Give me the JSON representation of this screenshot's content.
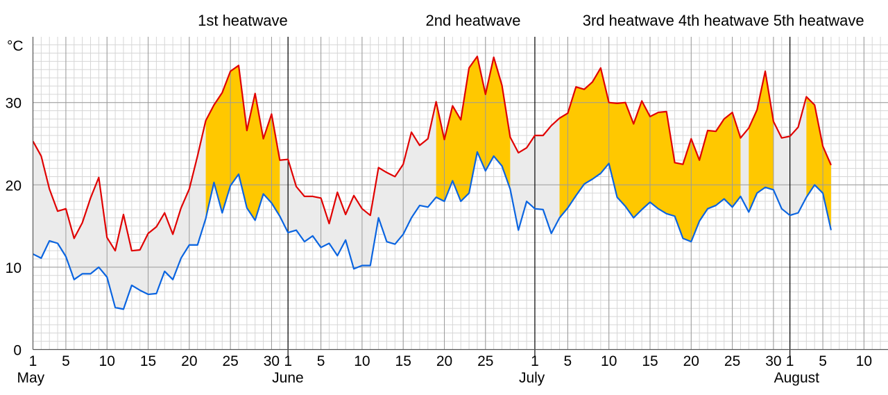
{
  "chart_data": {
    "type": "area",
    "y_unit": "°C",
    "ylim": [
      0,
      38
    ],
    "y_ticks": [
      0,
      10,
      20,
      30
    ],
    "x_start": "05-01",
    "x_end": "08-13",
    "months": [
      {
        "label": "May",
        "day_index": 0
      },
      {
        "label": "June",
        "day_index": 31
      },
      {
        "label": "July",
        "day_index": 61
      },
      {
        "label": "August",
        "day_index": 92
      }
    ],
    "x_tick_labels": [
      {
        "label": "1",
        "day_index": 0
      },
      {
        "label": "5",
        "day_index": 4
      },
      {
        "label": "10",
        "day_index": 9
      },
      {
        "label": "15",
        "day_index": 14
      },
      {
        "label": "20",
        "day_index": 19
      },
      {
        "label": "25",
        "day_index": 24
      },
      {
        "label": "30",
        "day_index": 29
      },
      {
        "label": "1",
        "day_index": 31
      },
      {
        "label": "5",
        "day_index": 35
      },
      {
        "label": "10",
        "day_index": 40
      },
      {
        "label": "15",
        "day_index": 45
      },
      {
        "label": "20",
        "day_index": 50
      },
      {
        "label": "25",
        "day_index": 55
      },
      {
        "label": "1",
        "day_index": 61
      },
      {
        "label": "5",
        "day_index": 65
      },
      {
        "label": "10",
        "day_index": 70
      },
      {
        "label": "15",
        "day_index": 75
      },
      {
        "label": "20",
        "day_index": 80
      },
      {
        "label": "25",
        "day_index": 85
      },
      {
        "label": "30",
        "day_index": 90
      },
      {
        "label": "1",
        "day_index": 92
      },
      {
        "label": "5",
        "day_index": 96
      },
      {
        "label": "10",
        "day_index": 101
      }
    ],
    "heatwaves": [
      {
        "label": "1st heatwave",
        "start": 21,
        "end": 30
      },
      {
        "label": "2nd heatwave",
        "start": 49,
        "end": 58
      },
      {
        "label": "3rd heatwave",
        "start": 64,
        "end": 86
      },
      {
        "label": "4th heatwave",
        "start": 87,
        "end": 90
      },
      {
        "label": "5th heatwave",
        "start": 94,
        "end": 97
      }
    ],
    "grid": true,
    "series": [
      {
        "key": "max",
        "color": "#e00000",
        "values": [
          25.3,
          23.5,
          19.5,
          16.8,
          17.1,
          13.5,
          15.4,
          18.4,
          20.9,
          13.6,
          12.0,
          16.4,
          12.0,
          12.1,
          14.1,
          14.9,
          16.6,
          14.0,
          17.2,
          19.5,
          23.5,
          27.8,
          29.7,
          31.2,
          33.8,
          34.5,
          26.6,
          31.1,
          25.6,
          28.6,
          23.0,
          23.1,
          19.8,
          18.6,
          18.6,
          18.4,
          15.3,
          19.1,
          16.4,
          18.7,
          17.1,
          16.3,
          22.1,
          21.5,
          21.0,
          22.5,
          26.4,
          24.8,
          25.6,
          30.1,
          25.5,
          29.6,
          27.9,
          34.2,
          35.6,
          31.0,
          35.5,
          32.1,
          25.8,
          23.9,
          24.5,
          26.0,
          26.0,
          27.2,
          28.1,
          28.7,
          31.9,
          31.6,
          32.5,
          34.2,
          30.0,
          29.9,
          30.0,
          27.4,
          30.2,
          28.3,
          28.8,
          28.9,
          22.7,
          22.5,
          25.6,
          23.0,
          26.6,
          26.5,
          28.0,
          28.8,
          25.7,
          26.9,
          29.1,
          33.8,
          27.7,
          25.7,
          25.9,
          27.0,
          30.7,
          29.7,
          24.7,
          22.4
        ]
      },
      {
        "key": "min",
        "color": "#0a64e0",
        "values": [
          11.6,
          11.1,
          13.2,
          12.9,
          11.3,
          8.5,
          9.2,
          9.2,
          10.0,
          8.8,
          5.1,
          4.9,
          7.8,
          7.2,
          6.7,
          6.8,
          9.5,
          8.5,
          11.1,
          12.7,
          12.7,
          15.9,
          20.3,
          16.6,
          19.9,
          21.3,
          17.2,
          15.7,
          18.9,
          17.8,
          16.2,
          14.2,
          14.5,
          13.1,
          13.8,
          12.4,
          12.9,
          11.4,
          13.3,
          9.8,
          10.2,
          10.2,
          16.0,
          13.1,
          12.8,
          14.0,
          16.0,
          17.5,
          17.3,
          18.5,
          18.0,
          20.5,
          18.0,
          19.0,
          24.0,
          21.7,
          23.5,
          22.3,
          19.5,
          14.5,
          18.0,
          17.1,
          17.0,
          14.1,
          16.0,
          17.2,
          18.7,
          20.1,
          20.7,
          21.4,
          22.6,
          18.5,
          17.4,
          16.0,
          17.0,
          17.9,
          17.1,
          16.5,
          16.2,
          13.5,
          13.1,
          15.6,
          17.1,
          17.5,
          18.3,
          17.3,
          18.6,
          16.7,
          19.0,
          19.7,
          19.4,
          17.1,
          16.3,
          16.6,
          18.5,
          20.0,
          19.0,
          14.5
        ]
      }
    ]
  }
}
